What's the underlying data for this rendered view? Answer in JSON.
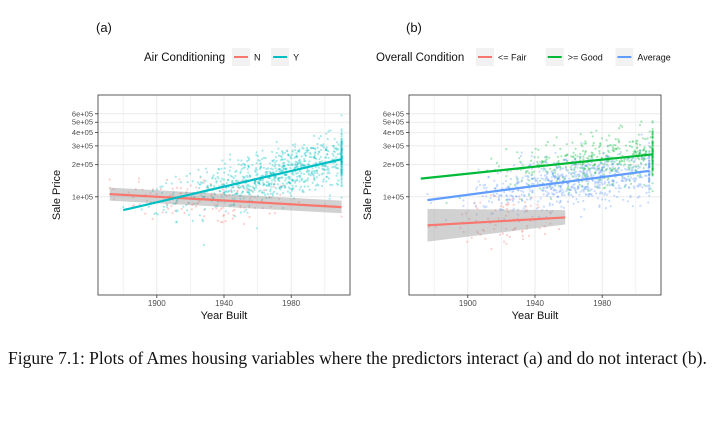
{
  "figure": {
    "caption": "Figure 7.1: Plots of Ames housing variables where the predictors interact (a) and do not interact (b)."
  },
  "chart_data": [
    {
      "type": "scatter",
      "panel_label": "(a)",
      "xlabel": "Year Built",
      "ylabel": "Sale Price",
      "y_scale": "log10",
      "xlim": [
        1865,
        2015
      ],
      "ylim": [
        12000,
        900000
      ],
      "x_ticks": [
        1900,
        1940,
        1980
      ],
      "x_tick_labels": [
        "1900",
        "1940",
        "1980"
      ],
      "y_ticks": [
        100000,
        200000,
        300000,
        400000,
        500000,
        600000
      ],
      "y_tick_labels": [
        "1e+05",
        "2e+05",
        "3e+05",
        "4e+05",
        "5e+05",
        "6e+05"
      ],
      "grid": true,
      "legend": {
        "title": "Air Conditioning",
        "position": "top"
      },
      "series": [
        {
          "name": "N",
          "color": "#F8766D",
          "trend": {
            "x": [
              1872,
              2010
            ],
            "y": [
              106000,
              80000
            ]
          },
          "band": {
            "lower": [
              92000,
              70000
            ],
            "upper": [
              122000,
              92000
            ]
          },
          "x_range": [
            1872,
            2010
          ],
          "cloud_center": [
            1930,
            110000
          ],
          "n_points": 140
        },
        {
          "name": "Y",
          "color": "#00BFC4",
          "trend": {
            "x": [
              1880,
              2010
            ],
            "y": [
              75000,
              225000
            ]
          },
          "band": null,
          "x_range": [
            1872,
            2010
          ],
          "cloud_center": [
            1975,
            170000
          ],
          "n_points": 900
        }
      ]
    },
    {
      "type": "scatter",
      "panel_label": "(b)",
      "xlabel": "Year Built",
      "ylabel": "Sale Price",
      "y_scale": "log10",
      "xlim": [
        1865,
        2015
      ],
      "ylim": [
        12000,
        900000
      ],
      "x_ticks": [
        1900,
        1940,
        1980
      ],
      "x_tick_labels": [
        "1900",
        "1940",
        "1980"
      ],
      "y_ticks": [
        100000,
        200000,
        300000,
        400000,
        500000,
        600000
      ],
      "y_tick_labels": [
        "1e+05",
        "2e+05",
        "3e+05",
        "4e+05",
        "5e+05",
        "6e+05"
      ],
      "grid": true,
      "legend": {
        "title": "Overall Condition",
        "position": "top"
      },
      "series": [
        {
          "name": "<= Fair",
          "color": "#F8766D",
          "trend": {
            "x": [
              1876,
              1958
            ],
            "y": [
              54000,
              64000
            ]
          },
          "band": {
            "lower": [
              38000,
              55000
            ],
            "upper": [
              77000,
              75000
            ]
          },
          "x_range": [
            1876,
            1958
          ],
          "cloud_center": [
            1925,
            60000
          ],
          "n_points": 80
        },
        {
          "name": ">= Good",
          "color": "#00BA38",
          "trend": {
            "x": [
              1872,
              2010
            ],
            "y": [
              148000,
              250000
            ]
          },
          "band": null,
          "x_range": [
            1872,
            2010
          ],
          "cloud_center": [
            1985,
            220000
          ],
          "n_points": 500
        },
        {
          "name": "Average",
          "color": "#619CFF",
          "trend": {
            "x": [
              1876,
              2008
            ],
            "y": [
              93000,
              175000
            ]
          },
          "band": null,
          "x_range": [
            1876,
            2008
          ],
          "cloud_center": [
            1965,
            140000
          ],
          "n_points": 700
        }
      ]
    }
  ]
}
